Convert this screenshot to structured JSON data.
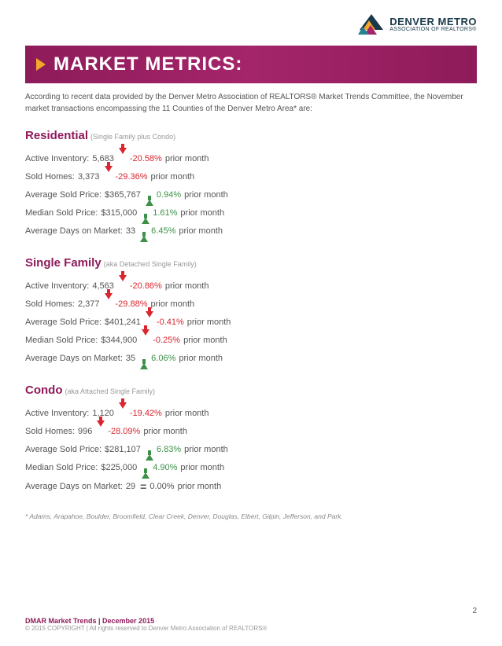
{
  "logo": {
    "title": "DENVER METRO",
    "subtitle": "ASSOCIATION OF REALTORS®",
    "colors": {
      "orange": "#f4a82a",
      "teal": "#2a8090",
      "magenta": "#a4256a",
      "navy": "#1a3a4a"
    }
  },
  "banner": {
    "title": "MARKET METRICS:"
  },
  "intro": "According to recent data provided by the Denver Metro Association of REALTORS® Market Trends Committee, the November market transactions encompassing the 11 Counties of the Denver Metro Area* are:",
  "sections": [
    {
      "title": "Residential",
      "subtitle": "(Single Family plus Condo)",
      "metrics": [
        {
          "label": "Active Inventory:",
          "value": "5,683",
          "dir": "down",
          "pct": "-20.58%",
          "suffix": "prior month"
        },
        {
          "label": "Sold Homes:",
          "value": "3,373",
          "dir": "down",
          "pct": "-29.36%",
          "suffix": "prior month"
        },
        {
          "label": "Average Sold Price:",
          "value": "$365,767",
          "dir": "up",
          "pct": "0.94%",
          "suffix": "prior month"
        },
        {
          "label": "Median Sold Price:",
          "value": "$315,000",
          "dir": "up",
          "pct": "1.61%",
          "suffix": "prior month"
        },
        {
          "label": "Average Days on Market:",
          "value": "33",
          "dir": "up",
          "pct": "6.45%",
          "suffix": "prior month"
        }
      ]
    },
    {
      "title": "Single Family",
      "subtitle": "(aka Detached Single Family)",
      "metrics": [
        {
          "label": "Active Inventory:",
          "value": "4,563",
          "dir": "down",
          "pct": "-20.86%",
          "suffix": "prior month"
        },
        {
          "label": "Sold Homes:",
          "value": "2,377",
          "dir": "down",
          "pct": "-29.88%",
          "suffix": "prior month"
        },
        {
          "label": "Average Sold Price:",
          "value": "$401,241",
          "dir": "down",
          "pct": "-0.41%",
          "suffix": "prior month"
        },
        {
          "label": "Median Sold Price:",
          "value": "$344,900",
          "dir": "down",
          "pct": "-0.25%",
          "suffix": "prior month"
        },
        {
          "label": "Average Days on Market:",
          "value": "35",
          "dir": "up",
          "pct": "6.06%",
          "suffix": "prior month"
        }
      ]
    },
    {
      "title": "Condo",
      "subtitle": "(aka Attached Single Family)",
      "metrics": [
        {
          "label": "Active Inventory:",
          "value": " 1,120",
          "dir": "down",
          "pct": "-19.42%",
          "suffix": "prior month"
        },
        {
          "label": "Sold Homes:",
          "value": "996",
          "dir": "down",
          "pct": "-28.09%",
          "suffix": "prior month"
        },
        {
          "label": "Average Sold Price:",
          "value": "$281,107",
          "dir": "up",
          "pct": "6.83%",
          "suffix": "prior month"
        },
        {
          "label": "Median Sold Price:",
          "value": "$225,000",
          "dir": "up",
          "pct": "4.90%",
          "suffix": "prior month"
        },
        {
          "label": "Average Days on Market:",
          "value": "29",
          "dir": "flat",
          "pct": "0.00%",
          "suffix": "prior month"
        }
      ]
    }
  ],
  "footnote": "* Adams, Arapahoe, Boulder, Broomfield, Clear Creek, Denver, Douglas, Elbert, Gilpin, Jefferson, and Park.",
  "footer": {
    "title": "DMAR Market Trends | December 2015",
    "copyright": "© 2015 COPYRIGHT | All rights reserved to Denver Metro Association of REALTORS®",
    "page": "2"
  }
}
